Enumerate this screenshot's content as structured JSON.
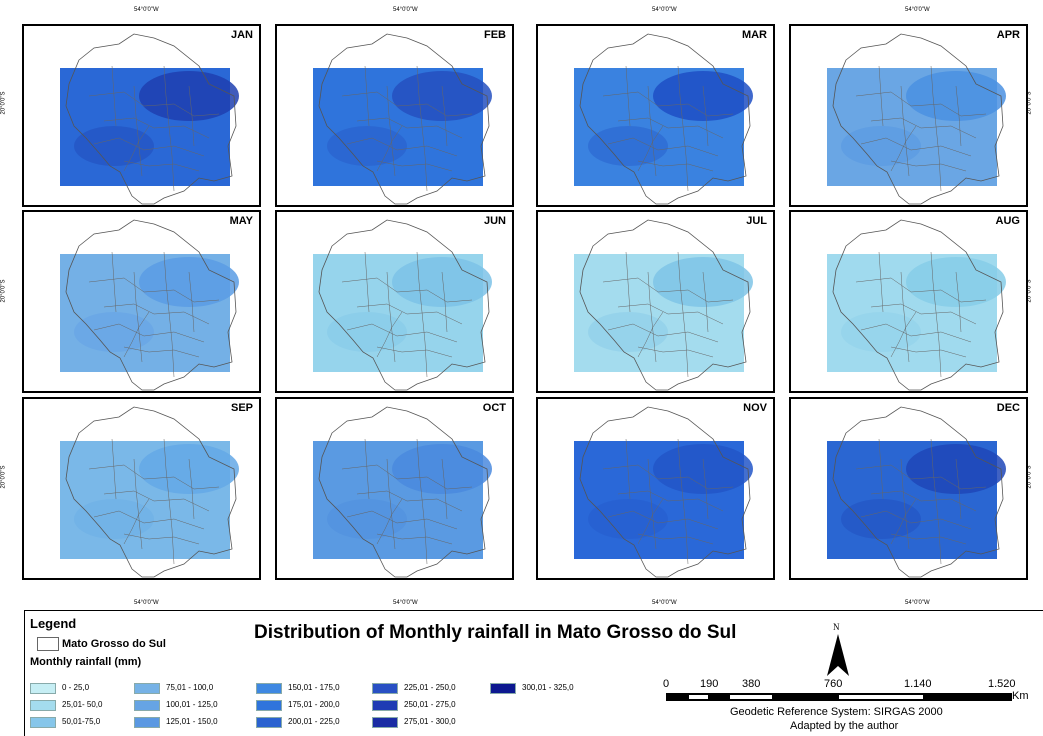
{
  "axis": {
    "lon_label": "54°0'0\"W",
    "lat_label": "20°0'0\"S"
  },
  "months": [
    "JAN",
    "FEB",
    "MAR",
    "APR",
    "MAY",
    "JUN",
    "JUL",
    "AUG",
    "SEP",
    "OCT",
    "NOV",
    "DEC"
  ],
  "month_fills": [
    "#2a68d6",
    "#2f74dc",
    "#3a82e0",
    "#6aa6e4",
    "#74b0e6",
    "#96d4ec",
    "#a4dcee",
    "#a0daee",
    "#7ab8e8",
    "#5a9ae2",
    "#2a68d8",
    "#2a66d2"
  ],
  "month_accents": [
    "#1e3fb0",
    "#2550c0",
    "#1f4fc4",
    "#4a90e2",
    "#5b9ce4",
    "#7cc2e8",
    "#7fc4e6",
    "#86cce8",
    "#64a8e6",
    "#4a8ade",
    "#2256c8",
    "#1e46b8"
  ],
  "legend": {
    "title": "Legend",
    "region_label": "Mato Grosso do Sul",
    "rainfall_label": "Monthly rainfall (mm)",
    "classes": [
      {
        "label": "0 - 25,0",
        "color": "#c6eef4"
      },
      {
        "label": "25,01- 50,0",
        "color": "#a4dcee"
      },
      {
        "label": "50,01-75,0",
        "color": "#86c6ea"
      },
      {
        "label": "75,01 - 100,0",
        "color": "#76b2e6"
      },
      {
        "label": "100,01 - 125,0",
        "color": "#66a4e4"
      },
      {
        "label": "125,01 - 150,0",
        "color": "#5a98e2"
      },
      {
        "label": "150,01 - 175,0",
        "color": "#3e88e2"
      },
      {
        "label": "175,01 - 200,0",
        "color": "#2f74dc"
      },
      {
        "label": "200,01 - 225,0",
        "color": "#2a62d0"
      },
      {
        "label": "225,01 - 250,0",
        "color": "#2850c4"
      },
      {
        "label": "250,01 - 275,0",
        "color": "#1f3cb4"
      },
      {
        "label": "275,01 - 300,0",
        "color": "#1a2ca4"
      },
      {
        "label": "300,01 - 325,0",
        "color": "#0c1890"
      }
    ]
  },
  "title": "Distribution of Monthly rainfall in Mato Grosso do Sul",
  "north_label": "N",
  "scale": {
    "ticks": [
      "0",
      "190",
      "380",
      "760",
      "1.140",
      "1.520"
    ],
    "unit": "Km",
    "ref_system": "Geodetic Reference System: SIRGAS 2000",
    "credit": "Adapted by the author"
  }
}
